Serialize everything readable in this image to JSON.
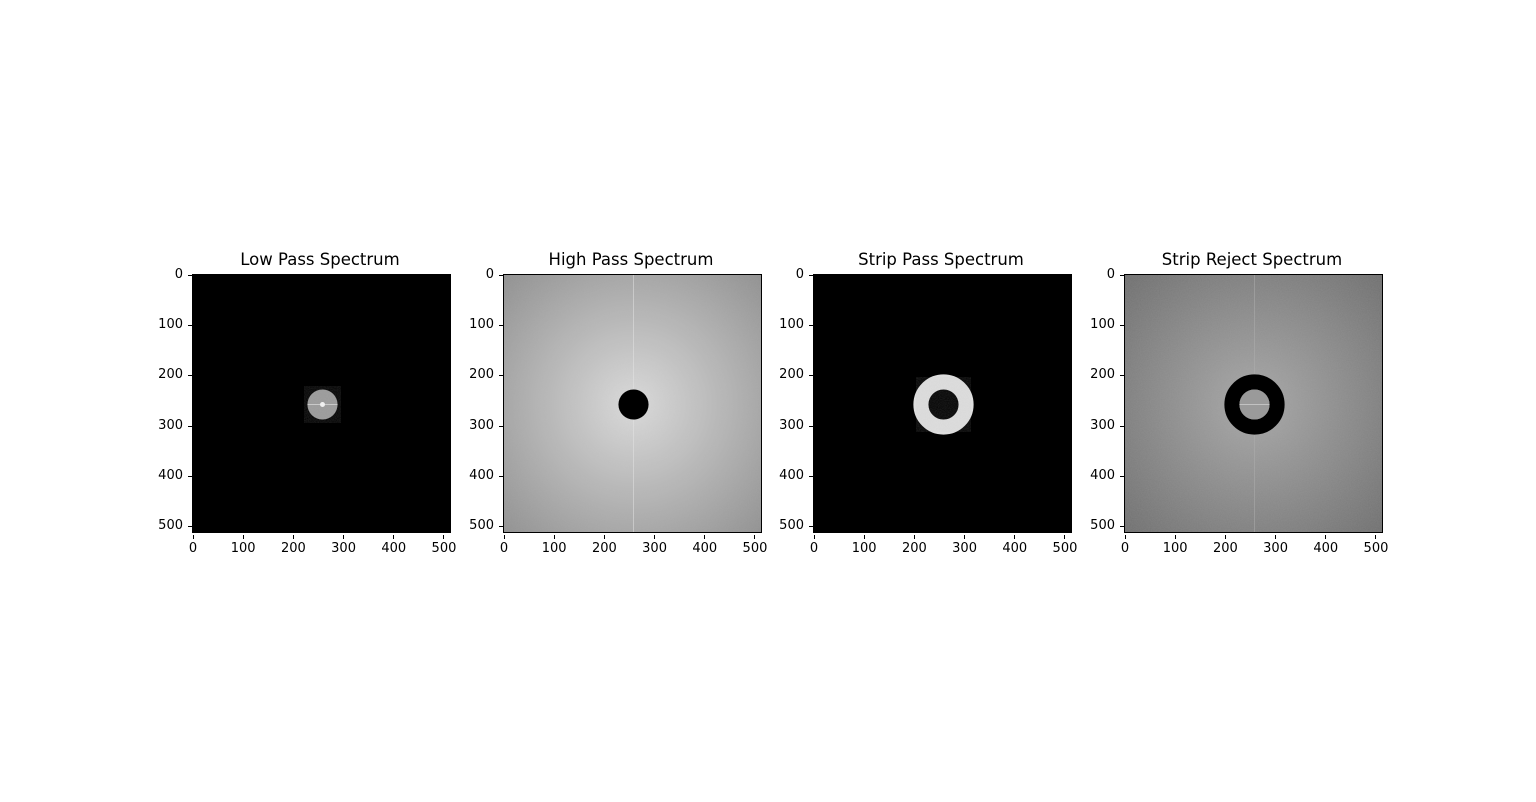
{
  "figure": {
    "panels": [
      {
        "id": "low-pass",
        "title": "Low Pass Spectrum",
        "mode": "low"
      },
      {
        "id": "high-pass",
        "title": "High Pass Spectrum",
        "mode": "high"
      },
      {
        "id": "strip-pass",
        "title": "Strip Pass Spectrum",
        "mode": "strip-pass"
      },
      {
        "id": "strip-reject",
        "title": "Strip Reject Spectrum",
        "mode": "strip-reject"
      }
    ],
    "axis": {
      "xticks": [
        "0",
        "100",
        "200",
        "300",
        "400",
        "500"
      ],
      "yticks": [
        "0",
        "100",
        "200",
        "300",
        "400",
        "500"
      ],
      "range": [
        0,
        511
      ]
    },
    "filters": {
      "center": [
        256,
        256
      ],
      "inner_radius": 30,
      "outer_radius": 60
    },
    "colors": {
      "background": "#ffffff",
      "masked": "#000000",
      "spectrum_bright": "#dcdcdc",
      "spectrum_dark": "#8a8a8a"
    }
  }
}
